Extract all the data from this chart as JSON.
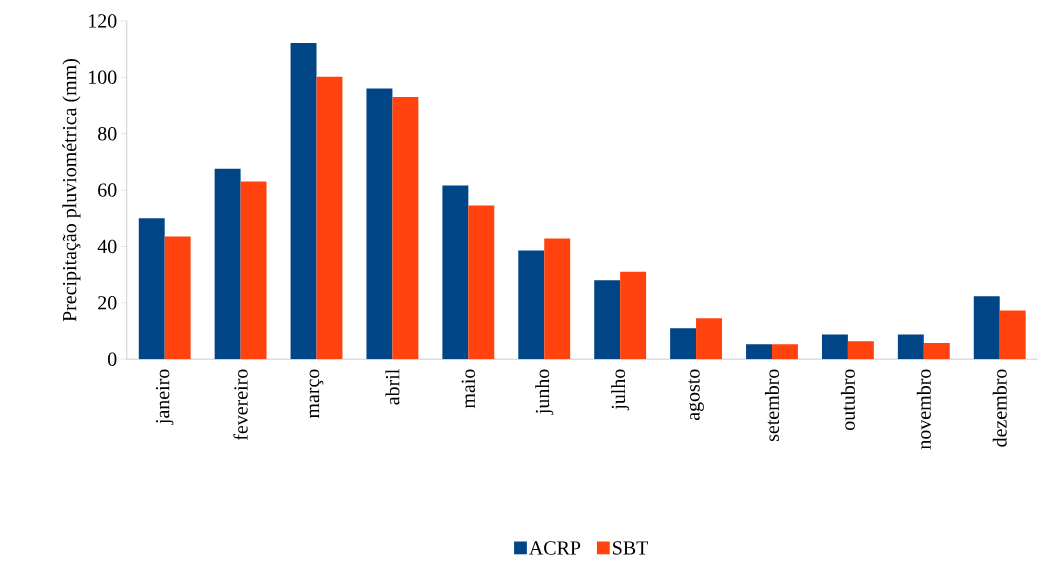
{
  "chart_data": {
    "type": "bar",
    "ylabel": "Precipitação pluviométrica (mm)",
    "categories": [
      "janeiro",
      "fevereiro",
      "março",
      "abril",
      "maio",
      "junho",
      "julho",
      "agosto",
      "setembro",
      "outubro",
      "novembro",
      "dezembro"
    ],
    "series": [
      {
        "name": "ACRP",
        "color": "#004586",
        "values": [
          50,
          67.6,
          112.2,
          96,
          61.6,
          38.6,
          28,
          11,
          5.3,
          8.8,
          8.8,
          22.3
        ]
      },
      {
        "name": "SBT",
        "color": "#ff420e",
        "values": [
          43.5,
          63,
          100.2,
          93,
          54.5,
          42.8,
          31,
          14.5,
          5.3,
          6.4,
          5.7,
          17.3
        ]
      }
    ],
    "ylim": [
      0,
      120
    ],
    "yticks": [
      0,
      20,
      40,
      60,
      80,
      100,
      120
    ],
    "legend": "bottom"
  }
}
